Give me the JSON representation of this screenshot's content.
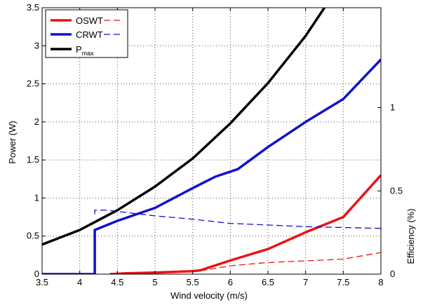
{
  "chart_data": {
    "type": "line",
    "xlabel": "Wind velocity (m/s)",
    "ylabel_left": "Power (W)",
    "ylabel_right": "Efficiency (%)",
    "xlim": [
      3.5,
      8
    ],
    "ylim_left": [
      0,
      3.5
    ],
    "ylim_right": [
      0,
      1.6
    ],
    "x_ticks": [
      3.5,
      4,
      4.5,
      5,
      5.5,
      6,
      6.5,
      7,
      7.5,
      8
    ],
    "x_tick_labels": [
      "3.5",
      "4",
      "4.5",
      "5",
      "5.5",
      "6",
      "6.5",
      "7",
      "7.5",
      "8"
    ],
    "y_left_ticks": [
      0,
      0.5,
      1,
      1.5,
      2,
      2.5,
      3,
      3.5
    ],
    "y_left_tick_labels": [
      "0",
      "0.5",
      "1",
      "1.5",
      "2",
      "2.5",
      "3",
      "3.5"
    ],
    "y_right_ticks": [
      0,
      0.5,
      1
    ],
    "y_right_tick_labels": [
      "0",
      "0.5",
      "1"
    ],
    "grid": true,
    "legend": {
      "placement": "top-left",
      "entries": [
        {
          "label": "OSWT",
          "color": "#ee1111",
          "dashed_companion": true
        },
        {
          "label": "CRWT",
          "color": "#1111cc",
          "dashed_companion": true
        },
        {
          "label": "P",
          "sub": "max",
          "color": "#000000",
          "dashed_companion": false
        }
      ]
    },
    "series": [
      {
        "name": "OSWT",
        "axis": "left",
        "style": "solid",
        "color": "#ee1111",
        "points": [
          [
            4.4,
            0
          ],
          [
            4.6,
            0.01
          ],
          [
            5,
            0.02
          ],
          [
            5.5,
            0.04
          ],
          [
            5.6,
            0.05
          ],
          [
            6,
            0.18
          ],
          [
            6.5,
            0.33
          ],
          [
            7,
            0.55
          ],
          [
            7.5,
            0.75
          ],
          [
            8,
            1.3
          ]
        ]
      },
      {
        "name": "CRWT",
        "axis": "left",
        "style": "solid",
        "color": "#1111cc",
        "points": [
          [
            3.5,
            0
          ],
          [
            4.2,
            0
          ],
          [
            4.2,
            0.58
          ],
          [
            4.5,
            0.7
          ],
          [
            5,
            0.87
          ],
          [
            5.5,
            1.13
          ],
          [
            5.8,
            1.28
          ],
          [
            6.1,
            1.38
          ],
          [
            6.5,
            1.67
          ],
          [
            7,
            2.0
          ],
          [
            7.5,
            2.3
          ],
          [
            8,
            2.82
          ]
        ]
      },
      {
        "name": "Pmax",
        "axis": "left",
        "style": "solid",
        "color": "#000000",
        "points": [
          [
            3.5,
            0.39
          ],
          [
            4,
            0.58
          ],
          [
            4.5,
            0.84
          ],
          [
            5,
            1.15
          ],
          [
            5.5,
            1.52
          ],
          [
            6,
            1.98
          ],
          [
            6.5,
            2.51
          ],
          [
            7,
            3.13
          ],
          [
            7.25,
            3.5
          ]
        ]
      },
      {
        "name": "OSWT efficiency",
        "axis": "right",
        "style": "dashed",
        "color": "#ee1111",
        "points": [
          [
            5.6,
            0.02
          ],
          [
            6,
            0.05
          ],
          [
            6.5,
            0.07
          ],
          [
            7,
            0.08
          ],
          [
            7.5,
            0.09
          ],
          [
            8,
            0.13
          ]
        ]
      },
      {
        "name": "CRWT efficiency",
        "axis": "right",
        "style": "dashed",
        "color": "#1111cc",
        "points": [
          [
            4.2,
            0.36
          ],
          [
            4.2,
            0.385
          ],
          [
            4.35,
            0.385
          ],
          [
            5,
            0.35
          ],
          [
            5.5,
            0.33
          ],
          [
            6,
            0.305
          ],
          [
            6.5,
            0.295
          ],
          [
            7,
            0.285
          ],
          [
            7.5,
            0.28
          ],
          [
            8,
            0.275
          ]
        ]
      }
    ]
  }
}
